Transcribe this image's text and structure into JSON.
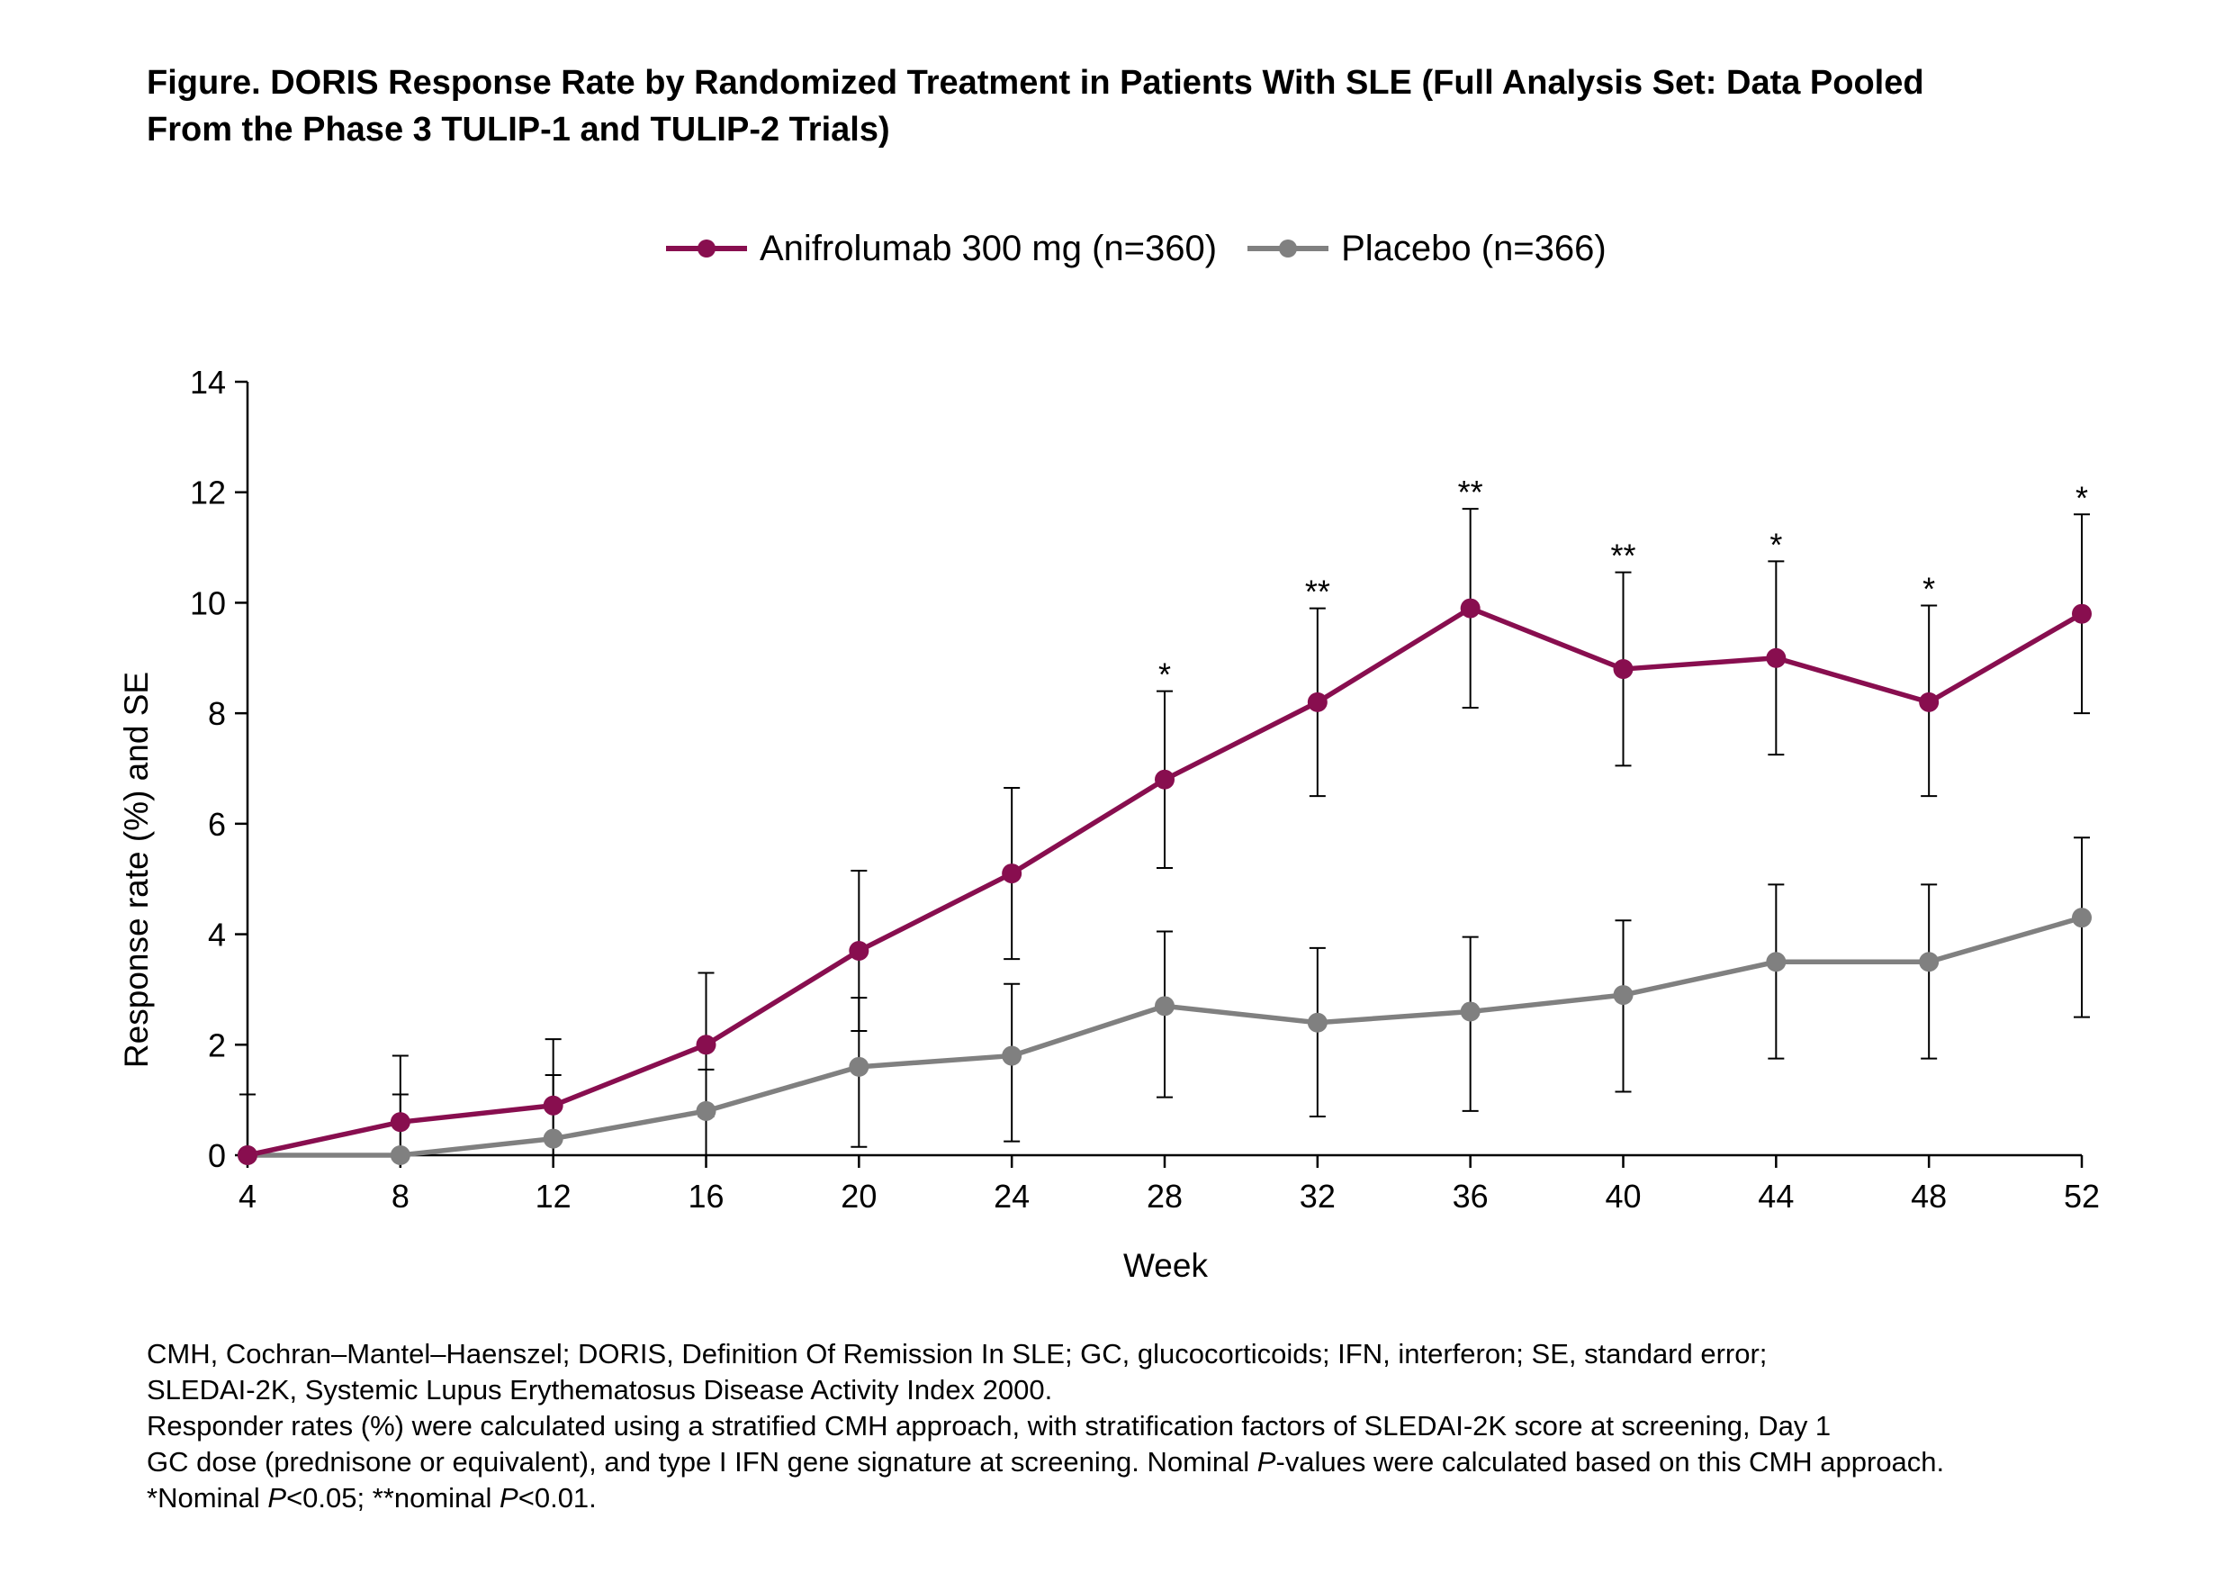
{
  "title_line1": "Figure. DORIS Response Rate by Randomized Treatment in Patients With SLE (Full Analysis Set: Data Pooled",
  "title_line2": "From the Phase 3 TULIP-1 and TULIP-2 Trials)",
  "colors": {
    "anifrolumab": "#880e4f",
    "placebo": "#808080",
    "axis": "#000000"
  },
  "chart_data": {
    "type": "line",
    "xlabel": "Week",
    "ylabel": "Response rate (%) and SE",
    "x": [
      4,
      8,
      12,
      16,
      20,
      24,
      28,
      32,
      36,
      40,
      44,
      48,
      52
    ],
    "x_ticks": [
      "4",
      "8",
      "12",
      "16",
      "20",
      "24",
      "28",
      "32",
      "36",
      "40",
      "44",
      "48",
      "52"
    ],
    "xlim": [
      4,
      52
    ],
    "y_ticks": [
      "0",
      "2",
      "4",
      "6",
      "8",
      "10",
      "12",
      "14"
    ],
    "ylim": [
      0,
      14
    ],
    "grid": false,
    "legend_position": "top-center",
    "series": [
      {
        "name": "Anifrolumab 300 mg (n=360)",
        "color": "#880e4f",
        "values": [
          0,
          0.6,
          0.9,
          2.0,
          3.7,
          5.1,
          6.8,
          8.2,
          9.9,
          8.8,
          9.0,
          8.2,
          9.8
        ],
        "se_upper": [
          1.1,
          1.8,
          2.1,
          3.3,
          5.15,
          6.65,
          8.4,
          9.9,
          11.7,
          10.55,
          10.75,
          9.95,
          11.6
        ],
        "se_lower": [
          0,
          0,
          0,
          0.7,
          2.25,
          3.55,
          5.2,
          6.5,
          8.1,
          7.05,
          7.25,
          6.5,
          8.0
        ],
        "significance": [
          "",
          "",
          "",
          "",
          "",
          "",
          "*",
          "**",
          "**",
          "**",
          "*",
          "*",
          "*"
        ]
      },
      {
        "name": "Placebo (n=366)",
        "color": "#808080",
        "values": [
          0,
          0,
          0.3,
          0.8,
          1.6,
          1.8,
          2.7,
          2.4,
          2.6,
          2.9,
          3.5,
          3.5,
          4.3
        ],
        "se_upper": [
          0,
          1.1,
          1.45,
          1.55,
          2.85,
          3.1,
          4.05,
          3.75,
          3.95,
          4.25,
          4.9,
          4.9,
          5.75
        ],
        "se_lower": [
          0,
          0,
          0,
          0,
          0.15,
          0.25,
          1.05,
          0.7,
          0.8,
          1.15,
          1.75,
          1.75,
          2.5
        ]
      }
    ]
  },
  "footnotes": {
    "line1": "CMH, Cochran–Mantel–Haenszel; DORIS, Definition Of Remission In SLE; GC, glucocorticoids; IFN, interferon; SE, standard error;",
    "line2": "SLEDAI-2K, Systemic Lupus Erythematosus Disease Activity Index 2000.",
    "line3": "Responder rates (%) were calculated using a stratified CMH approach, with stratification factors of SLEDAI-2K score at screening, Day 1",
    "line4_pre": "GC dose (prednisone or equivalent), and type I IFN gene signature at screening. Nominal ",
    "p_symbol": "P",
    "line4_post": "-values were calculated based on this CMH approach.",
    "line5_pre": "*Nominal ",
    "line5_mid1": "<0.05; **nominal ",
    "line5_mid2": "<0.01."
  }
}
